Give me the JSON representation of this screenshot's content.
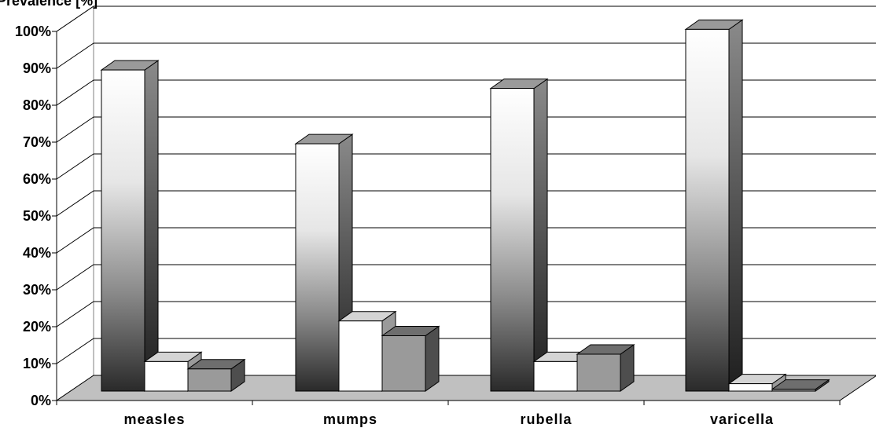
{
  "chart_data": {
    "type": "bar",
    "ylabel": "Prevalence [%]",
    "categories": [
      "measles",
      "mumps",
      "rubella",
      "varicella"
    ],
    "series": [
      {
        "values": [
          87,
          67,
          82,
          98
        ]
      },
      {
        "values": [
          8,
          19,
          8,
          2
        ]
      },
      {
        "values": [
          6,
          15,
          10,
          0.5
        ]
      }
    ],
    "ylim": [
      0,
      100
    ],
    "yticks": [
      "0%",
      "10%",
      "20%",
      "30%",
      "40%",
      "50%",
      "60%",
      "70%",
      "80%",
      "90%",
      "100%"
    ],
    "grid": true,
    "legend": "none"
  }
}
